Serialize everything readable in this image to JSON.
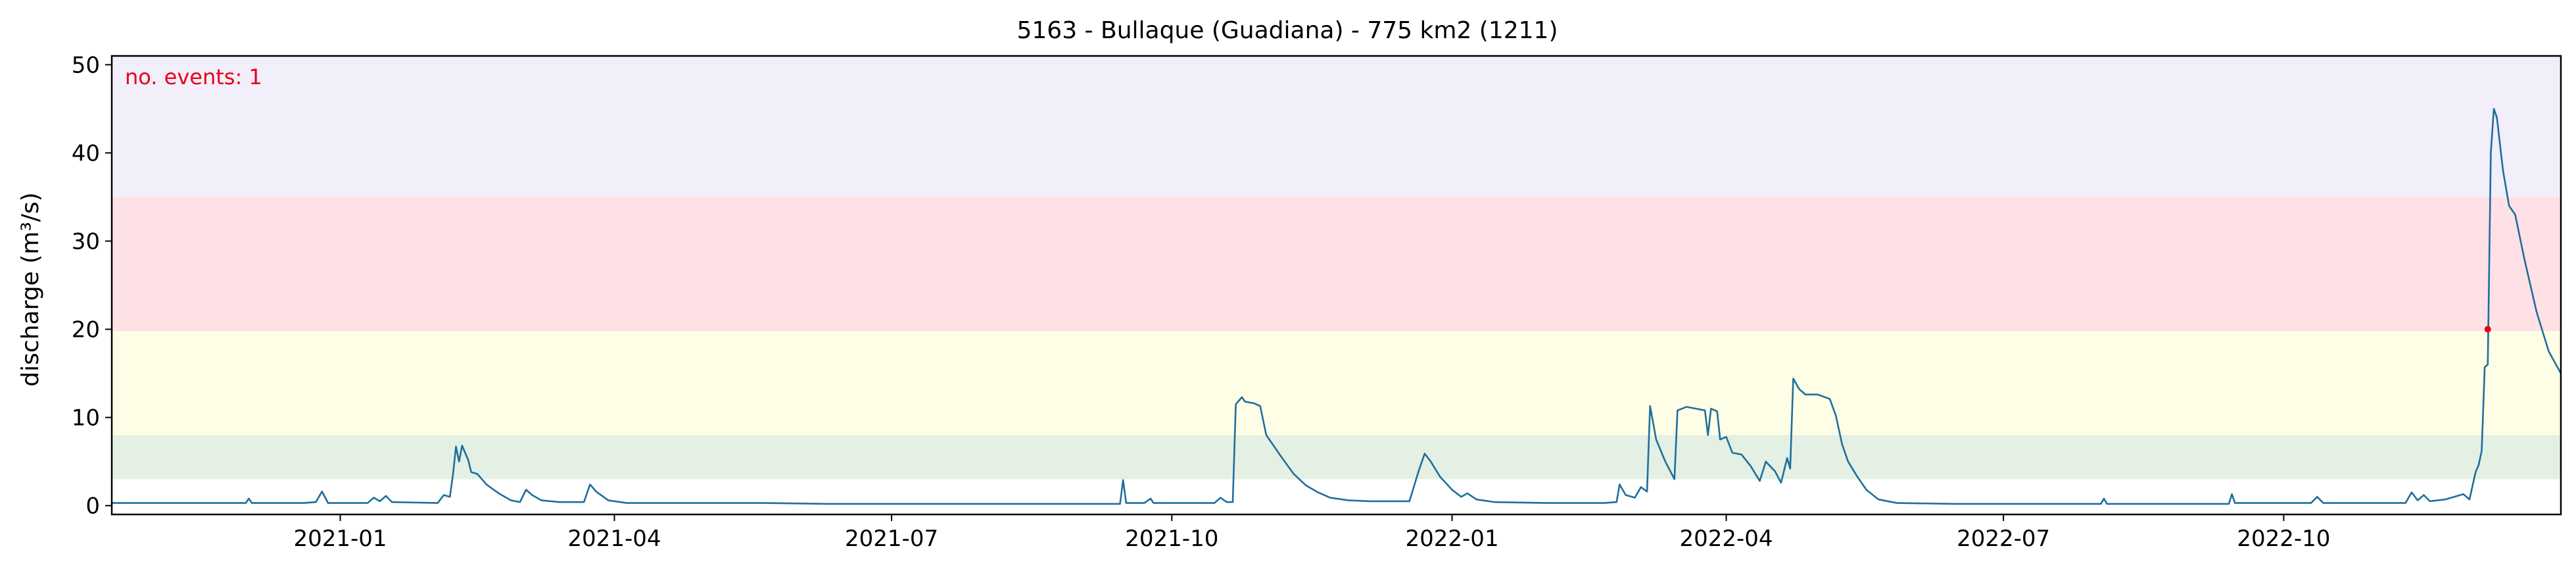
{
  "chart_data": {
    "type": "line",
    "title": "5163 - Bullaque (Guadiana) - 775 km2 (1211)",
    "xlabel": "",
    "ylabel": "discharge (m³/s)",
    "xlim": [
      "2020-10-18",
      "2022-12-31"
    ],
    "ylim": [
      -1,
      51
    ],
    "grid": false,
    "x_ticks": [
      "2021-01",
      "2021-04",
      "2021-07",
      "2021-10",
      "2022-01",
      "2022-04",
      "2022-07",
      "2022-10"
    ],
    "y_ticks": [
      0,
      10,
      20,
      30,
      40,
      50
    ],
    "threshold_bands": [
      {
        "from": 3,
        "to": 8,
        "color": "#e3f0e3"
      },
      {
        "from": 8,
        "to": 19.8,
        "color": "#fefee6"
      },
      {
        "from": 19.8,
        "to": 35,
        "color": "#fee1e5"
      },
      {
        "from": 35,
        "to": 51,
        "color": "#f2eefa"
      }
    ],
    "annotation": {
      "text": "no. events: 1",
      "color": "#e8001c"
    },
    "line_color": "#1f6e9c",
    "series": [
      {
        "points": [
          [
            "2020-10-18",
            0.3
          ],
          [
            "2020-11-15",
            0.3
          ],
          [
            "2020-12-01",
            0.3
          ],
          [
            "2020-12-02",
            0.8
          ],
          [
            "2020-12-03",
            0.3
          ],
          [
            "2020-12-20",
            0.3
          ],
          [
            "2020-12-24",
            0.4
          ],
          [
            "2020-12-26",
            1.6
          ],
          [
            "2020-12-28",
            0.3
          ],
          [
            "2021-01-10",
            0.3
          ],
          [
            "2021-01-12",
            0.9
          ],
          [
            "2021-01-14",
            0.5
          ],
          [
            "2021-01-16",
            1.1
          ],
          [
            "2021-01-18",
            0.4
          ],
          [
            "2021-02-02",
            0.3
          ],
          [
            "2021-02-04",
            1.2
          ],
          [
            "2021-02-06",
            1.0
          ],
          [
            "2021-02-07",
            3.5
          ],
          [
            "2021-02-08",
            6.7
          ],
          [
            "2021-02-09",
            5.0
          ],
          [
            "2021-02-10",
            6.8
          ],
          [
            "2021-02-12",
            5.2
          ],
          [
            "2021-02-13",
            3.8
          ],
          [
            "2021-02-15",
            3.6
          ],
          [
            "2021-02-18",
            2.4
          ],
          [
            "2021-02-22",
            1.4
          ],
          [
            "2021-02-26",
            0.6
          ],
          [
            "2021-03-01",
            0.4
          ],
          [
            "2021-03-03",
            1.8
          ],
          [
            "2021-03-05",
            1.2
          ],
          [
            "2021-03-08",
            0.6
          ],
          [
            "2021-03-14",
            0.4
          ],
          [
            "2021-03-22",
            0.4
          ],
          [
            "2021-03-24",
            2.4
          ],
          [
            "2021-03-26",
            1.6
          ],
          [
            "2021-03-30",
            0.6
          ],
          [
            "2021-04-05",
            0.3
          ],
          [
            "2021-05-01",
            0.3
          ],
          [
            "2021-05-20",
            0.3
          ],
          [
            "2021-06-10",
            0.2
          ],
          [
            "2021-07-01",
            0.2
          ],
          [
            "2021-08-01",
            0.2
          ],
          [
            "2021-09-01",
            0.2
          ],
          [
            "2021-09-14",
            0.2
          ],
          [
            "2021-09-15",
            2.9
          ],
          [
            "2021-09-16",
            0.3
          ],
          [
            "2021-09-22",
            0.3
          ],
          [
            "2021-09-24",
            0.8
          ],
          [
            "2021-09-25",
            0.3
          ],
          [
            "2021-10-15",
            0.3
          ],
          [
            "2021-10-17",
            0.9
          ],
          [
            "2021-10-19",
            0.4
          ],
          [
            "2021-10-21",
            0.4
          ],
          [
            "2021-10-22",
            11.5
          ],
          [
            "2021-10-24",
            12.3
          ],
          [
            "2021-10-25",
            11.8
          ],
          [
            "2021-10-28",
            11.6
          ],
          [
            "2021-10-30",
            11.3
          ],
          [
            "2021-11-01",
            8.0
          ],
          [
            "2021-11-03",
            7.0
          ],
          [
            "2021-11-06",
            5.5
          ],
          [
            "2021-11-10",
            3.6
          ],
          [
            "2021-11-14",
            2.3
          ],
          [
            "2021-11-18",
            1.5
          ],
          [
            "2021-11-22",
            0.9
          ],
          [
            "2021-11-28",
            0.6
          ],
          [
            "2021-12-05",
            0.5
          ],
          [
            "2021-12-12",
            0.5
          ],
          [
            "2021-12-18",
            0.5
          ],
          [
            "2021-12-21",
            3.9
          ],
          [
            "2021-12-23",
            5.9
          ],
          [
            "2021-12-25",
            5.0
          ],
          [
            "2021-12-28",
            3.3
          ],
          [
            "2022-01-01",
            1.8
          ],
          [
            "2022-01-04",
            1.0
          ],
          [
            "2022-01-06",
            1.4
          ],
          [
            "2022-01-09",
            0.7
          ],
          [
            "2022-01-15",
            0.4
          ],
          [
            "2022-02-01",
            0.3
          ],
          [
            "2022-02-20",
            0.3
          ],
          [
            "2022-02-24",
            0.4
          ],
          [
            "2022-02-25",
            2.4
          ],
          [
            "2022-02-27",
            1.2
          ],
          [
            "2022-03-02",
            0.9
          ],
          [
            "2022-03-04",
            2.1
          ],
          [
            "2022-03-06",
            1.6
          ],
          [
            "2022-03-07",
            11.3
          ],
          [
            "2022-03-09",
            7.5
          ],
          [
            "2022-03-12",
            5.0
          ],
          [
            "2022-03-15",
            3.0
          ],
          [
            "2022-03-16",
            10.8
          ],
          [
            "2022-03-19",
            11.2
          ],
          [
            "2022-03-22",
            11.0
          ],
          [
            "2022-03-25",
            10.8
          ],
          [
            "2022-03-26",
            8.0
          ],
          [
            "2022-03-27",
            11.0
          ],
          [
            "2022-03-29",
            10.7
          ],
          [
            "2022-03-30",
            7.5
          ],
          [
            "2022-04-01",
            7.8
          ],
          [
            "2022-04-03",
            6.0
          ],
          [
            "2022-04-06",
            5.8
          ],
          [
            "2022-04-09",
            4.5
          ],
          [
            "2022-04-12",
            2.8
          ],
          [
            "2022-04-14",
            5.0
          ],
          [
            "2022-04-17",
            3.9
          ],
          [
            "2022-04-19",
            2.6
          ],
          [
            "2022-04-21",
            5.4
          ],
          [
            "2022-04-22",
            4.2
          ],
          [
            "2022-04-23",
            14.4
          ],
          [
            "2022-04-25",
            13.2
          ],
          [
            "2022-04-27",
            12.6
          ],
          [
            "2022-05-01",
            12.6
          ],
          [
            "2022-05-05",
            12.1
          ],
          [
            "2022-05-07",
            10.2
          ],
          [
            "2022-05-09",
            7.0
          ],
          [
            "2022-05-11",
            5.0
          ],
          [
            "2022-05-14",
            3.3
          ],
          [
            "2022-05-17",
            1.8
          ],
          [
            "2022-05-21",
            0.7
          ],
          [
            "2022-05-27",
            0.3
          ],
          [
            "2022-06-15",
            0.2
          ],
          [
            "2022-07-15",
            0.2
          ],
          [
            "2022-08-02",
            0.2
          ],
          [
            "2022-08-03",
            0.8
          ],
          [
            "2022-08-04",
            0.2
          ],
          [
            "2022-09-13",
            0.2
          ],
          [
            "2022-09-14",
            1.3
          ],
          [
            "2022-09-15",
            0.3
          ],
          [
            "2022-10-10",
            0.3
          ],
          [
            "2022-10-12",
            1.0
          ],
          [
            "2022-10-14",
            0.3
          ],
          [
            "2022-11-10",
            0.3
          ],
          [
            "2022-11-12",
            1.5
          ],
          [
            "2022-11-14",
            0.6
          ],
          [
            "2022-11-16",
            1.2
          ],
          [
            "2022-11-18",
            0.5
          ],
          [
            "2022-11-23",
            0.7
          ],
          [
            "2022-11-29",
            1.3
          ],
          [
            "2022-12-01",
            0.7
          ],
          [
            "2022-12-03",
            3.8
          ],
          [
            "2022-12-04",
            4.6
          ],
          [
            "2022-12-05",
            6.2
          ],
          [
            "2022-12-06",
            15.7
          ],
          [
            "2022-12-07",
            16.0
          ],
          [
            "2022-12-08",
            40.0
          ],
          [
            "2022-12-09",
            45.0
          ],
          [
            "2022-12-10",
            44.0
          ],
          [
            "2022-12-12",
            38.0
          ],
          [
            "2022-12-14",
            34.0
          ],
          [
            "2022-12-16",
            33.0
          ],
          [
            "2022-12-19",
            28.0
          ],
          [
            "2022-12-23",
            22.0
          ],
          [
            "2022-12-27",
            17.5
          ],
          [
            "2022-12-31",
            15.0
          ]
        ]
      }
    ],
    "event_points": [
      {
        "date": "2022-12-07",
        "value": 20.0,
        "color": "#e8001c"
      }
    ]
  }
}
